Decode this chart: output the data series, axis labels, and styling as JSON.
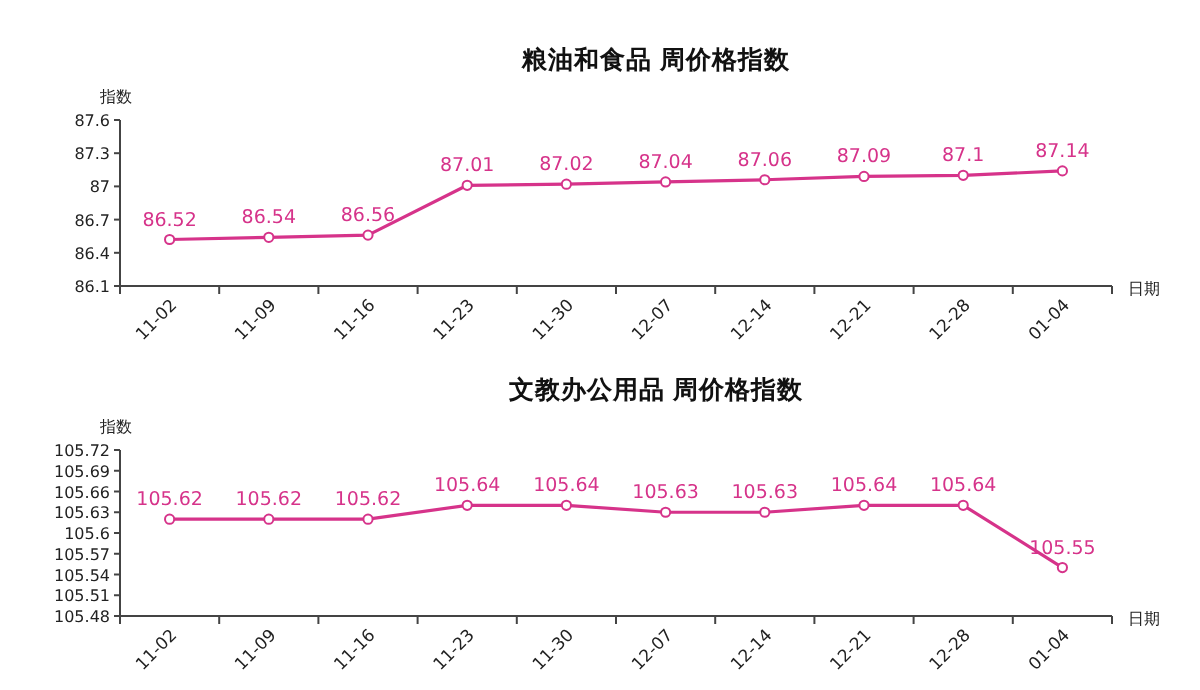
{
  "chart_data": [
    {
      "type": "line",
      "title": "粮油和食品 周价格指数",
      "xlabel": "日期",
      "ylabel": "指数",
      "categories": [
        "11-02",
        "11-09",
        "11-16",
        "11-23",
        "11-30",
        "12-07",
        "12-14",
        "12-21",
        "12-28",
        "01-04"
      ],
      "series": [
        {
          "color": "#d6338a",
          "values": [
            86.52,
            86.54,
            86.56,
            87.01,
            87.02,
            87.04,
            87.06,
            87.09,
            87.1,
            87.14
          ]
        }
      ],
      "ylim": [
        86.1,
        87.6
      ],
      "yticks": [
        86.1,
        86.4,
        86.7,
        87,
        87.3,
        87.6
      ],
      "data_labels": true,
      "marker": "circle",
      "grid": false
    },
    {
      "type": "line",
      "title": "文教办公用品 周价格指数",
      "xlabel": "日期",
      "ylabel": "指数",
      "categories": [
        "11-02",
        "11-09",
        "11-16",
        "11-23",
        "11-30",
        "12-07",
        "12-14",
        "12-21",
        "12-28",
        "01-04"
      ],
      "series": [
        {
          "color": "#d6338a",
          "values": [
            105.62,
            105.62,
            105.62,
            105.64,
            105.64,
            105.63,
            105.63,
            105.64,
            105.64,
            105.55
          ]
        }
      ],
      "ylim": [
        105.48,
        105.72
      ],
      "yticks": [
        105.48,
        105.51,
        105.54,
        105.57,
        105.6,
        105.63,
        105.66,
        105.69,
        105.72
      ],
      "data_labels": true,
      "marker": "circle",
      "grid": false
    }
  ]
}
